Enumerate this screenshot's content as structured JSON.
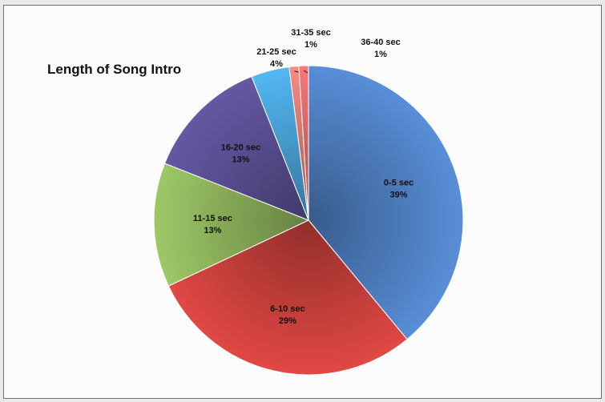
{
  "chart_data": {
    "type": "pie",
    "title": "Length of Song Intro",
    "slices": [
      {
        "label": "0-5 sec",
        "percent_text": "39%",
        "value": 39,
        "color": "#4f7fc1"
      },
      {
        "label": "6-10 sec",
        "percent_text": "29%",
        "value": 29,
        "color": "#c9403c"
      },
      {
        "label": "11-15 sec",
        "percent_text": "13%",
        "value": 13,
        "color": "#8db35c"
      },
      {
        "label": "16-20 sec",
        "percent_text": "13%",
        "value": 13,
        "color": "#5a4f92"
      },
      {
        "label": "21-25 sec",
        "percent_text": "4%",
        "value": 4,
        "color": "#4aa3d9"
      },
      {
        "label": "31-35 sec",
        "percent_text": "1%",
        "value": 1,
        "color": "#e07b72"
      },
      {
        "label": "36-40 sec",
        "percent_text": "1%",
        "value": 1,
        "color": "#e06a6a"
      }
    ],
    "legend": "none",
    "data_labels": "category name and percentage"
  }
}
